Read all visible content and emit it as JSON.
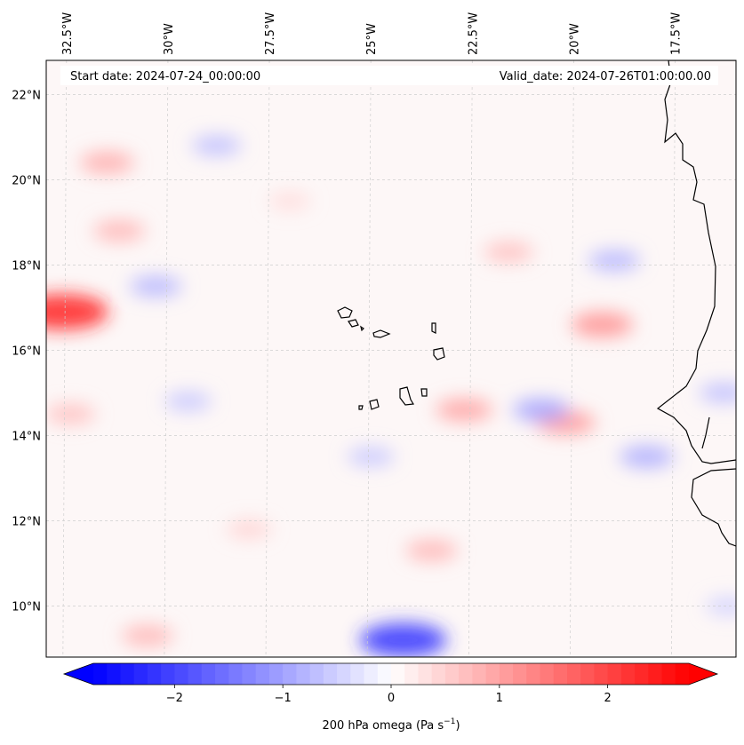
{
  "map": {
    "start_date_text": "Start date: 2024-07-24_00:00:00",
    "valid_date_text": "Valid_date: 2024-07-26T01:00:00.00",
    "extent": {
      "lon_min": -33.0,
      "lon_max": -16.0,
      "lat_min": 8.8,
      "lat_max": 22.8
    },
    "lon_ticks": [
      {
        "value": -32.5,
        "label": "32.5°W"
      },
      {
        "value": -30.0,
        "label": "30°W"
      },
      {
        "value": -27.5,
        "label": "27.5°W"
      },
      {
        "value": -25.0,
        "label": "25°W"
      },
      {
        "value": -22.5,
        "label": "22.5°W"
      },
      {
        "value": -20.0,
        "label": "20°W"
      },
      {
        "value": -17.5,
        "label": "17.5°W"
      }
    ],
    "lat_ticks": [
      {
        "value": 22,
        "label": "22°N"
      },
      {
        "value": 20,
        "label": "20°N"
      },
      {
        "value": 18,
        "label": "18°N"
      },
      {
        "value": 16,
        "label": "16°N"
      },
      {
        "value": 14,
        "label": "14°N"
      },
      {
        "value": 12,
        "label": "12°N"
      },
      {
        "value": 10,
        "label": "10°N"
      }
    ],
    "field_features": [
      {
        "lon": -32.6,
        "lat": 16.9,
        "value": 2.4,
        "name": "strong-ascent-west-edge"
      },
      {
        "lon": -31.5,
        "lat": 20.4,
        "value": 0.9
      },
      {
        "lon": -31.2,
        "lat": 18.8,
        "value": 0.8
      },
      {
        "lon": -32.4,
        "lat": 14.5,
        "value": 0.7
      },
      {
        "lon": -30.3,
        "lat": 17.5,
        "value": -0.8
      },
      {
        "lon": -28.8,
        "lat": 20.8,
        "value": -0.7
      },
      {
        "lon": -29.5,
        "lat": 14.8,
        "value": -0.6
      },
      {
        "lon": -24.2,
        "lat": 9.2,
        "value": -2.2,
        "name": "strong-descent-south"
      },
      {
        "lon": -22.7,
        "lat": 14.6,
        "value": 1.0
      },
      {
        "lon": -20.2,
        "lat": 14.3,
        "value": 1.1
      },
      {
        "lon": -20.8,
        "lat": 14.6,
        "value": -1.0
      },
      {
        "lon": -19.3,
        "lat": 16.6,
        "value": 1.2
      },
      {
        "lon": -21.6,
        "lat": 18.3,
        "value": 0.7
      },
      {
        "lon": -19.0,
        "lat": 18.1,
        "value": -0.8
      },
      {
        "lon": -18.2,
        "lat": 13.5,
        "value": -0.9
      },
      {
        "lon": -23.5,
        "lat": 11.3,
        "value": 0.8
      },
      {
        "lon": -30.5,
        "lat": 9.3,
        "value": 0.8
      },
      {
        "lon": -28.0,
        "lat": 11.8,
        "value": 0.5
      },
      {
        "lon": -25.0,
        "lat": 13.5,
        "value": -0.6
      },
      {
        "lon": -27.0,
        "lat": 19.5,
        "value": 0.4
      },
      {
        "lon": -16.3,
        "lat": 15.0,
        "value": -0.7
      },
      {
        "lon": -16.2,
        "lat": 10.0,
        "value": -0.5
      }
    ]
  },
  "colorbar": {
    "label": "200 hPa omega (Pa s",
    "label_sup": "−1",
    "label_end": ")",
    "min": -2.75,
    "max": 2.75,
    "ticks": [
      {
        "value": -2,
        "label": "−2"
      },
      {
        "value": -1,
        "label": "−1"
      },
      {
        "value": 0,
        "label": "0"
      },
      {
        "value": 1,
        "label": "1"
      },
      {
        "value": 2,
        "label": "2"
      }
    ],
    "color_low": "#0000ff",
    "color_mid": "#ffffff",
    "color_high": "#ff0000"
  }
}
